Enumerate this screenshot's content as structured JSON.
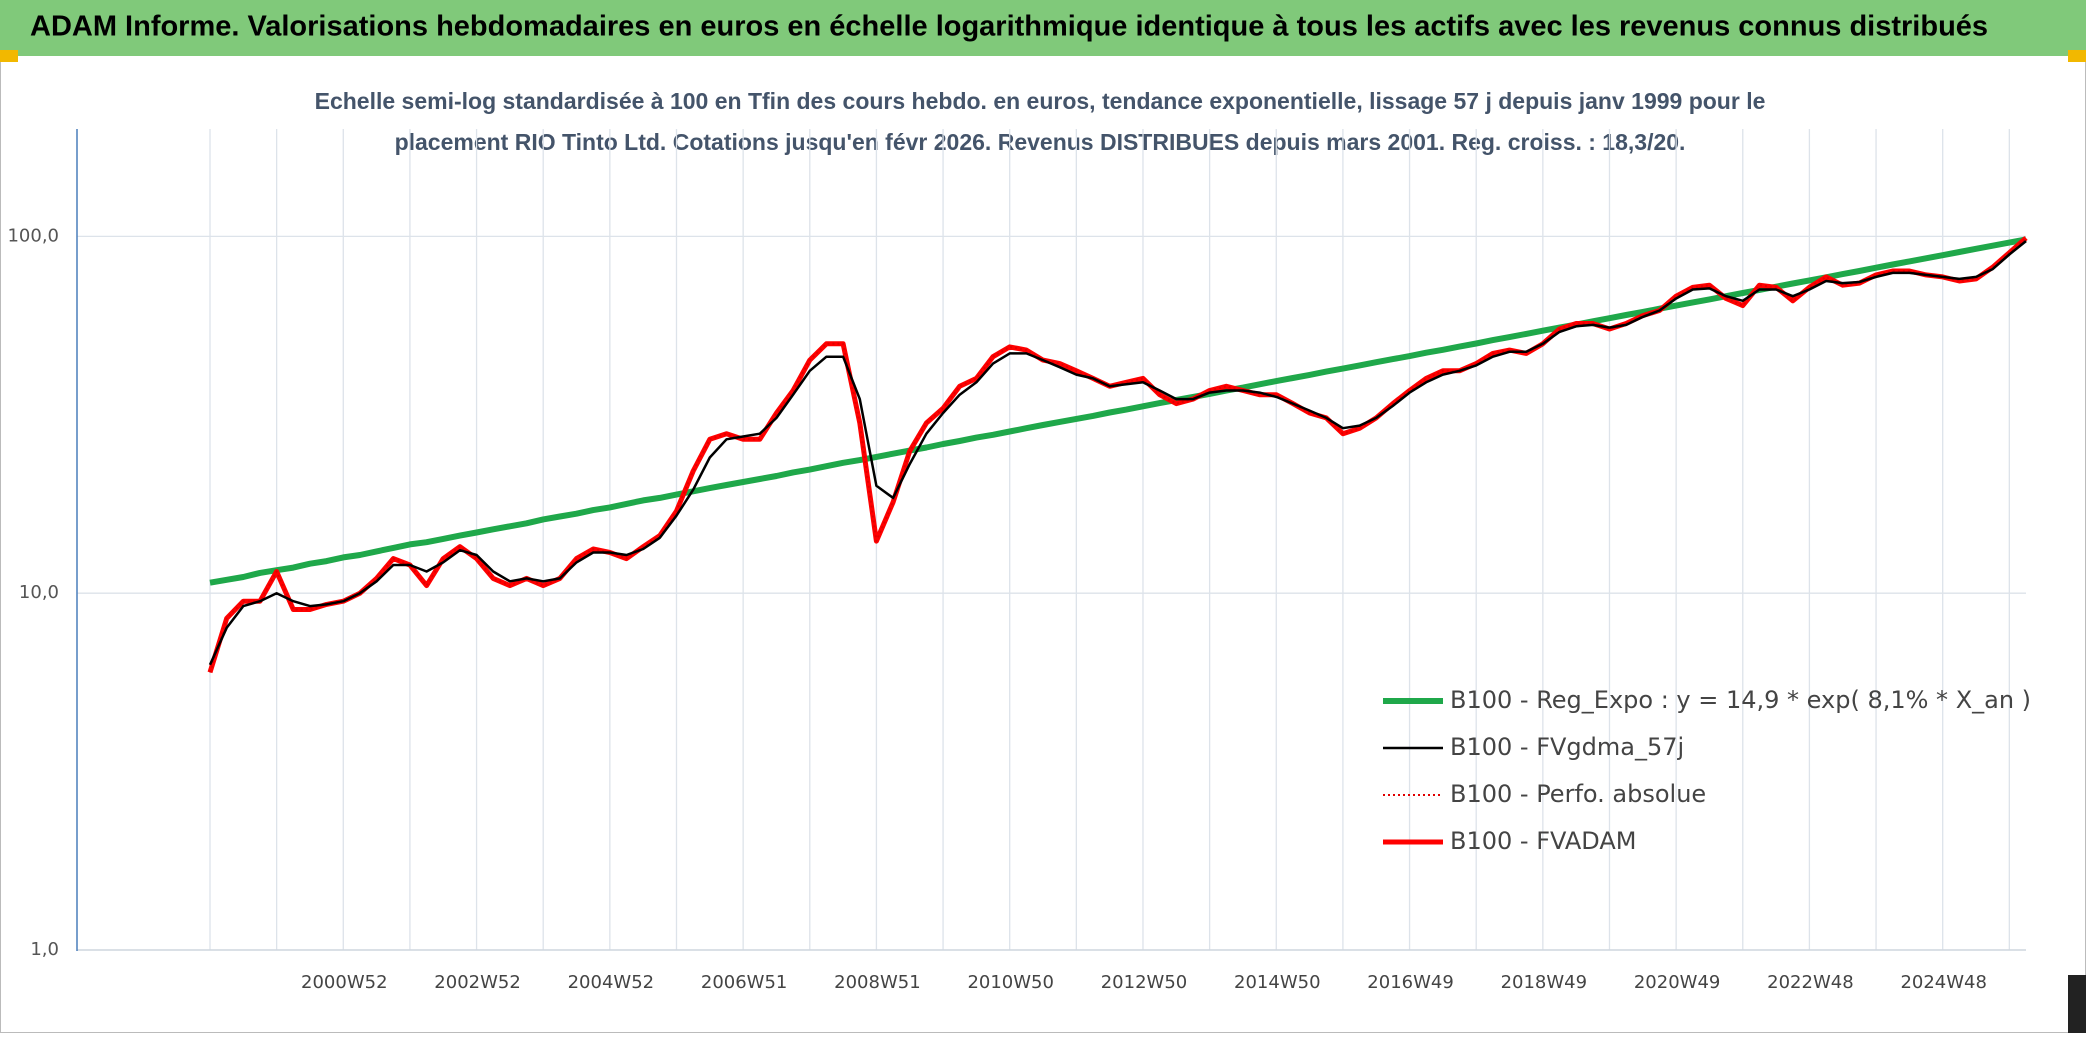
{
  "chart_data": {
    "type": "line",
    "title": "ADAM Informe. Valorisations hebdomadaires en euros en échelle logarithmique identique à tous les actifs avec les revenus connus distribués",
    "subtitle": [
      "Echelle semi-log standardisée à 100 en Tfin des cours hebdo. en euros, tendance exponentielle, lissage 57 j depuis janv 1999 pour le",
      "placement RIO Tinto Ltd. Cotations jusqu'en févr 2026. Revenus DISTRIBUES depuis mars 2001. Reg. croiss. : 18,3/20."
    ],
    "log_scale": true,
    "grid": true,
    "legend": "lower-right",
    "ylim": [
      1,
      200
    ],
    "yticks": [
      {
        "value": 1,
        "label": "1,0"
      },
      {
        "value": 10,
        "label": "10,0"
      },
      {
        "value": 100,
        "label": "100,0"
      }
    ],
    "categories": [
      null,
      null,
      null,
      null,
      null,
      null,
      null,
      null,
      "2000W52",
      null,
      null,
      null,
      null,
      null,
      null,
      null,
      "2002W52",
      null,
      null,
      null,
      null,
      null,
      null,
      null,
      "2004W52",
      null,
      null,
      null,
      null,
      null,
      null,
      null,
      "2006W51",
      null,
      null,
      null,
      null,
      null,
      null,
      null,
      "2008W51",
      null,
      null,
      null,
      null,
      null,
      null,
      null,
      "2010W50",
      null,
      null,
      null,
      null,
      null,
      null,
      null,
      "2012W50",
      null,
      null,
      null,
      null,
      null,
      null,
      null,
      "2014W50",
      null,
      null,
      null,
      null,
      null,
      null,
      null,
      "2016W49",
      null,
      null,
      null,
      null,
      null,
      null,
      null,
      "2018W49",
      null,
      null,
      null,
      null,
      null,
      null,
      null,
      "2020W49",
      null,
      null,
      null,
      null,
      null,
      null,
      null,
      "2022W48",
      null,
      null,
      null,
      null,
      null,
      null,
      null,
      "2024W48",
      null,
      null,
      null,
      null,
      null
    ],
    "series": [
      {
        "name": "B100 - Reg_Expo : y = 14,9 * exp( 8,1% *  X_an )",
        "color": "#1fa84a",
        "width": 6,
        "style": "solid",
        "values": [
          10.7,
          10.9,
          11.1,
          11.4,
          11.6,
          11.8,
          12.1,
          12.3,
          12.6,
          12.8,
          13.1,
          13.4,
          13.7,
          13.9,
          14.2,
          14.5,
          14.8,
          15.1,
          15.4,
          15.7,
          16.1,
          16.4,
          16.7,
          17.1,
          17.4,
          17.8,
          18.2,
          18.5,
          18.9,
          19.3,
          19.7,
          20.1,
          20.5,
          20.9,
          21.3,
          21.8,
          22.2,
          22.7,
          23.2,
          23.6,
          24.1,
          24.6,
          25.1,
          25.6,
          26.2,
          26.7,
          27.3,
          27.8,
          28.4,
          29.0,
          29.6,
          30.2,
          30.8,
          31.4,
          32.1,
          32.7,
          33.4,
          34.1,
          34.8,
          35.5,
          36.2,
          37.0,
          37.7,
          38.5,
          39.3,
          40.1,
          40.9,
          41.8,
          42.6,
          43.5,
          44.4,
          45.3,
          46.2,
          47.2,
          48.1,
          49.1,
          50.1,
          51.2,
          52.2,
          53.3,
          54.4,
          55.5,
          56.6,
          57.8,
          59.0,
          60.2,
          61.4,
          62.7,
          64.0,
          65.3,
          66.6,
          68.0,
          69.4,
          70.8,
          72.3,
          73.8,
          75.3,
          76.8,
          78.4,
          80.0,
          81.7,
          83.4,
          85.1,
          86.8,
          88.6,
          90.4,
          92.3,
          94.2,
          96.1,
          98.1
        ]
      },
      {
        "name": "B100 - FVgdma_57j",
        "color": "#000000",
        "width": 2.5,
        "style": "solid",
        "values": [
          6.3,
          8,
          9.2,
          9.5,
          10,
          9.5,
          9.2,
          9.3,
          9.5,
          10,
          10.8,
          12,
          12,
          11.5,
          12.2,
          13.2,
          12.8,
          11.5,
          10.8,
          11,
          10.8,
          11,
          12.2,
          13,
          13,
          12.8,
          13.3,
          14.3,
          16.5,
          19.5,
          24,
          27,
          27.5,
          28,
          31,
          36,
          42,
          46,
          46,
          35,
          20,
          18.5,
          23,
          28,
          32,
          36,
          39,
          44,
          47,
          47,
          45,
          43,
          41,
          40,
          38,
          38.5,
          39,
          37,
          35,
          35,
          36.5,
          37,
          37,
          36.5,
          35.5,
          34,
          32.5,
          31,
          29,
          29.5,
          31,
          33.5,
          36.5,
          39,
          41,
          42,
          43.5,
          46,
          47.5,
          47.5,
          50,
          54,
          56,
          56.5,
          55.5,
          56.5,
          59.5,
          62,
          67,
          71,
          71.5,
          68,
          66,
          71,
          71,
          68,
          71,
          75,
          74,
          74.5,
          77,
          79,
          79,
          78,
          77,
          76,
          77,
          81,
          89,
          97
        ]
      },
      {
        "name": "B100 - Perfo. absolue",
        "color": "#e00000",
        "width": 2,
        "style": "dotted",
        "values": [
          6,
          8.5,
          9.5,
          9.5,
          11.5,
          9,
          9,
          9.3,
          9.5,
          10,
          11,
          12.5,
          12,
          10.5,
          12.5,
          13.5,
          12.5,
          11,
          10.5,
          11,
          10.5,
          11,
          12.5,
          13.3,
          13,
          12.5,
          13.5,
          14.5,
          17,
          22,
          27,
          28,
          27,
          27,
          32,
          37,
          45,
          50,
          50,
          30,
          14,
          18,
          25,
          30,
          33,
          38,
          40,
          46,
          49,
          48,
          45,
          44,
          42,
          40,
          38,
          39,
          40,
          36,
          34,
          35,
          37,
          38,
          37,
          36,
          36,
          34,
          32,
          31,
          28,
          29,
          31,
          34,
          37,
          40,
          42,
          42,
          44,
          47,
          48,
          47,
          50,
          55,
          57,
          57,
          55,
          57,
          60,
          62,
          68,
          72,
          73,
          67,
          64,
          73,
          72,
          66,
          72,
          77,
          73,
          74,
          78,
          80,
          80,
          78,
          77,
          75,
          76,
          82,
          90,
          99
        ]
      },
      {
        "name": "B100 - FVADAM",
        "color": "#ff0000",
        "width": 5,
        "style": "solid",
        "values": [
          6,
          8.5,
          9.5,
          9.5,
          11.5,
          9,
          9,
          9.3,
          9.5,
          10,
          11,
          12.5,
          12,
          10.5,
          12.5,
          13.5,
          12.5,
          11,
          10.5,
          11,
          10.5,
          11,
          12.5,
          13.3,
          13,
          12.5,
          13.5,
          14.5,
          17,
          22,
          27,
          28,
          27,
          27,
          32,
          37,
          45,
          50,
          50,
          30,
          14,
          18,
          25,
          30,
          33,
          38,
          40,
          46,
          49,
          48,
          45,
          44,
          42,
          40,
          38,
          39,
          40,
          36,
          34,
          35,
          37,
          38,
          37,
          36,
          36,
          34,
          32,
          31,
          28,
          29,
          31,
          34,
          37,
          40,
          42,
          42,
          44,
          47,
          48,
          47,
          50,
          55,
          57,
          57,
          55,
          57,
          60,
          62,
          68,
          72,
          73,
          67,
          64,
          73,
          72,
          66,
          72,
          77,
          73,
          74,
          78,
          80,
          80,
          78,
          77,
          75,
          76,
          82,
          90,
          99
        ]
      }
    ]
  }
}
